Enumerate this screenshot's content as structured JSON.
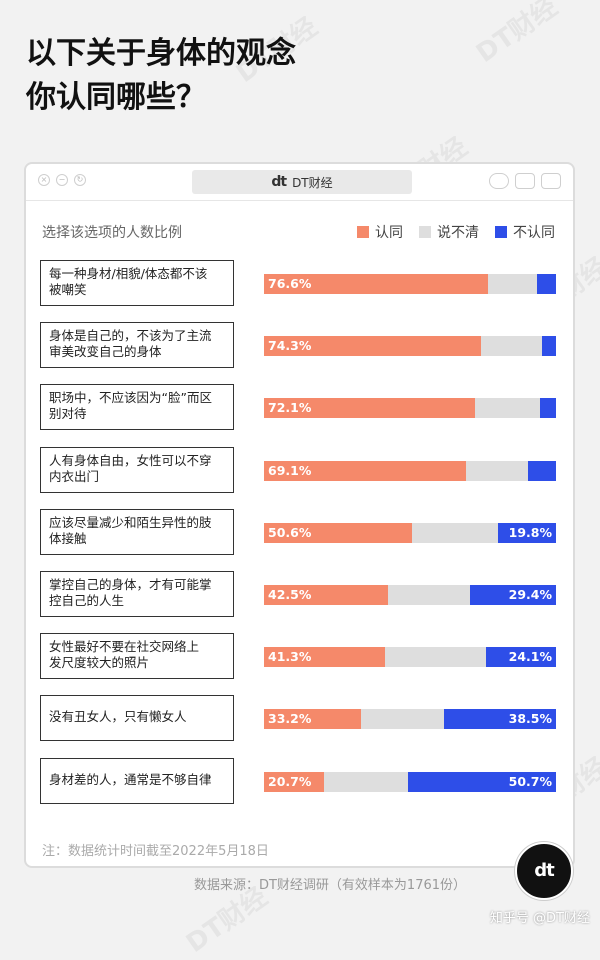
{
  "title_line1": "以下关于身体的观念",
  "title_line2": "你认同哪些？",
  "window": {
    "address_logo": "dt",
    "address_text": "DT财经"
  },
  "watermark_text": "DT财经",
  "subtitle": "选择该选项的人数比例",
  "legend": [
    {
      "label": "认同",
      "color": "#f5896a"
    },
    {
      "label": "说不清",
      "color": "#dedede"
    },
    {
      "label": "不认同",
      "color": "#2e4ee8"
    }
  ],
  "chart_data": {
    "type": "bar",
    "orientation": "horizontal",
    "stacked": true,
    "normalized_to": 100,
    "categories": [
      [
        "每一种身材/相貌/体态都不该",
        "被嘲笑"
      ],
      [
        "身体是自己的，不该为了主流",
        "审美改变自己的身体"
      ],
      [
        "职场中，不应该因为“脸”而区",
        "别对待"
      ],
      [
        "人有身体自由，女性可以不穿",
        "内衣出门"
      ],
      [
        "应该尽量减少和陌生异性的肢",
        "体接触"
      ],
      [
        "掌控自己的身体，才有可能掌",
        "控自己的人生"
      ],
      [
        "女性最好不要在社交网络上",
        "发尺度较大的照片"
      ],
      [
        "没有丑女人，只有懒女人"
      ],
      [
        "身材差的人，通常是不够自律"
      ]
    ],
    "series": [
      {
        "name": "认同",
        "color": "#f5896a",
        "values": [
          76.6,
          74.3,
          72.1,
          69.1,
          50.6,
          42.5,
          41.3,
          33.2,
          20.7
        ],
        "labels": [
          "76.6%",
          "74.3%",
          "72.1%",
          "69.1%",
          "50.6%",
          "42.5%",
          "41.3%",
          "33.2%",
          "20.7%"
        ]
      },
      {
        "name": "说不清",
        "color": "#dedede",
        "values": [
          17.0,
          21.0,
          22.3,
          21.3,
          29.6,
          28.1,
          34.6,
          28.3,
          28.6
        ],
        "labels": [
          "",
          "",
          "",
          "",
          "",
          "",
          "",
          "",
          ""
        ]
      },
      {
        "name": "不认同",
        "color": "#2e4ee8",
        "values": [
          6.4,
          4.7,
          5.6,
          9.6,
          19.8,
          29.4,
          24.1,
          38.5,
          50.7
        ],
        "labels": [
          "",
          "",
          "",
          "",
          "19.8%",
          "29.4%",
          "24.1%",
          "38.5%",
          "50.7%"
        ]
      }
    ],
    "xlim": [
      0,
      100
    ]
  },
  "note": "注：数据统计时间截至2022年5月18日",
  "source": "数据来源：DT财经调研（有效样本为1761份）",
  "corner_logo": "dt",
  "footer": "知乎号 @DT财经"
}
